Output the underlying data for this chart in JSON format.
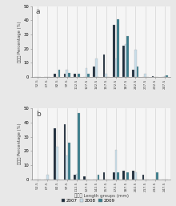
{
  "categories": [
    "52.5",
    "67.5",
    "82.5",
    "97.5",
    "112.5",
    "127.5",
    "142.5",
    "157.5",
    "172.5",
    "187.5",
    "202.5",
    "217.5",
    "232.5",
    "247.5"
  ],
  "panel_a": {
    "2007": [
      0,
      0,
      2,
      2,
      2,
      0,
      7,
      16,
      37,
      22,
      5,
      0,
      0.5,
      0
    ],
    "2008": [
      0,
      0,
      0,
      5,
      0,
      6,
      13,
      2,
      13,
      23,
      19,
      2,
      0,
      0.5
    ],
    "2009": [
      0,
      0,
      5,
      3,
      2,
      2,
      0,
      0,
      41,
      29,
      7,
      0,
      0,
      1
    ]
  },
  "panel_b": {
    "2007": [
      0,
      0,
      36,
      39,
      3,
      2,
      0,
      5,
      5,
      6,
      6,
      3,
      0,
      0
    ],
    "2008": [
      0,
      3,
      23,
      17,
      4,
      0,
      0,
      0,
      21,
      0,
      5,
      0,
      0,
      0
    ],
    "2009": [
      0,
      0,
      0,
      26,
      47,
      0,
      3,
      0,
      5,
      5,
      0,
      0,
      5,
      0
    ]
  },
  "colors": {
    "2007": "#1c2b3a",
    "2008": "#c8dde8",
    "2009": "#3a7d8c"
  },
  "ylabel": "百分数 Percentage (%)",
  "xlabel": "体长组 Length groups (mm)",
  "ylim_a": [
    0,
    50
  ],
  "ylim_b": [
    0,
    50
  ],
  "label_a": "a",
  "label_b": "b",
  "legend_labels": [
    "2007",
    "2008",
    "2009"
  ],
  "bar_width": 0.22,
  "bg_color": "#e8e8e8",
  "plot_bg": "#f5f5f5"
}
